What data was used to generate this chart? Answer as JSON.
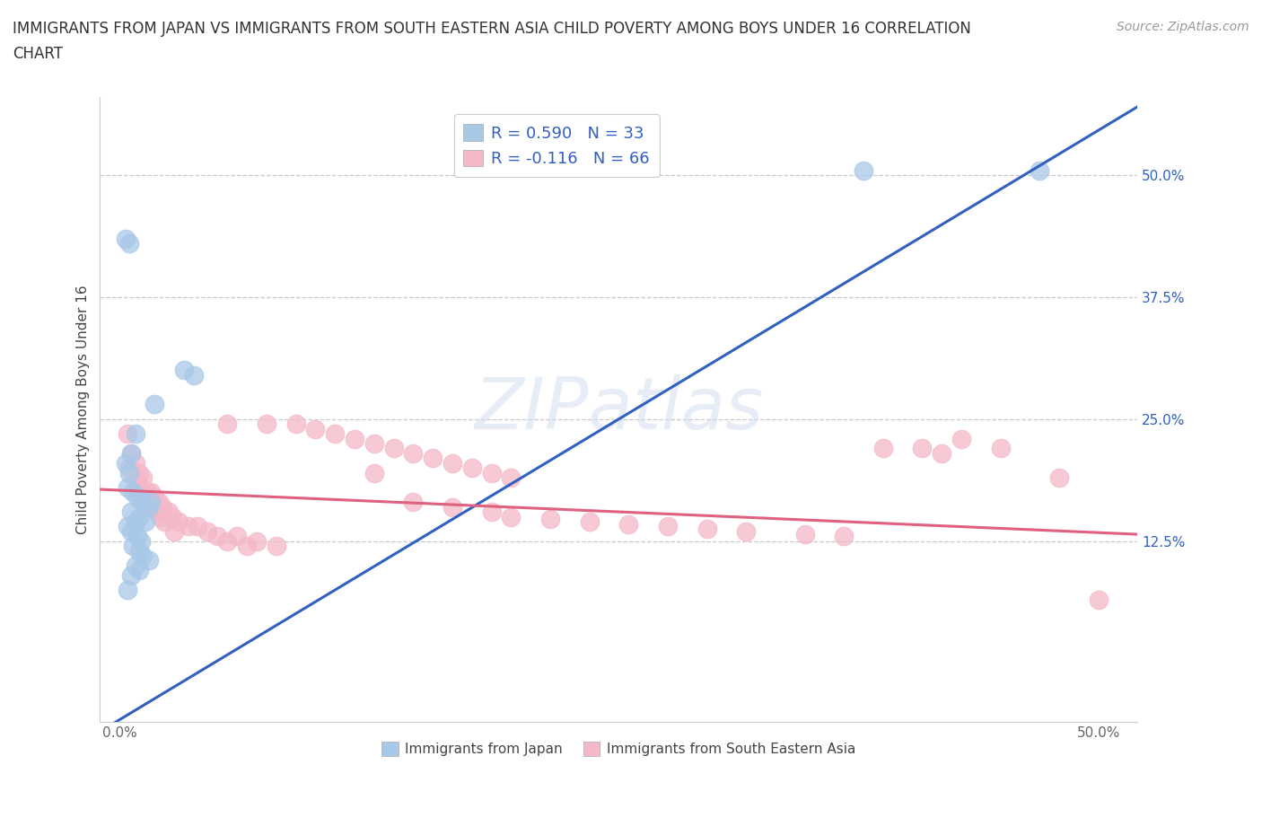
{
  "title_line1": "IMMIGRANTS FROM JAPAN VS IMMIGRANTS FROM SOUTH EASTERN ASIA CHILD POVERTY AMONG BOYS UNDER 16 CORRELATION",
  "title_line2": "CHART",
  "source_text": "Source: ZipAtlas.com",
  "ylabel": "Child Poverty Among Boys Under 16",
  "y_ticks": [
    0.125,
    0.25,
    0.375,
    0.5
  ],
  "y_tick_labels": [
    "12.5%",
    "25.0%",
    "37.5%",
    "50.0%"
  ],
  "xlim": [
    -0.01,
    0.52
  ],
  "ylim": [
    -0.06,
    0.58
  ],
  "japan_color": "#a8c8e8",
  "sea_color": "#f4b8c8",
  "japan_line_color": "#3060c0",
  "sea_line_color": "#e06080",
  "grid_color": "#c8c8d0",
  "background_color": "#ffffff",
  "japan_line_x0": -0.01,
  "japan_line_y0": -0.07,
  "japan_line_x1": 0.52,
  "japan_line_y1": 0.57,
  "sea_line_x0": -0.01,
  "sea_line_y0": 0.178,
  "sea_line_x1": 0.52,
  "sea_line_y1": 0.132,
  "japan_dots": [
    [
      0.003,
      0.435
    ],
    [
      0.005,
      0.43
    ],
    [
      0.033,
      0.3
    ],
    [
      0.038,
      0.295
    ],
    [
      0.018,
      0.265
    ],
    [
      0.008,
      0.235
    ],
    [
      0.006,
      0.215
    ],
    [
      0.003,
      0.205
    ],
    [
      0.005,
      0.195
    ],
    [
      0.004,
      0.18
    ],
    [
      0.007,
      0.175
    ],
    [
      0.009,
      0.17
    ],
    [
      0.012,
      0.165
    ],
    [
      0.015,
      0.16
    ],
    [
      0.006,
      0.155
    ],
    [
      0.01,
      0.15
    ],
    [
      0.008,
      0.145
    ],
    [
      0.013,
      0.145
    ],
    [
      0.004,
      0.14
    ],
    [
      0.006,
      0.135
    ],
    [
      0.009,
      0.13
    ],
    [
      0.011,
      0.125
    ],
    [
      0.007,
      0.12
    ],
    [
      0.01,
      0.115
    ],
    [
      0.012,
      0.11
    ],
    [
      0.015,
      0.105
    ],
    [
      0.008,
      0.1
    ],
    [
      0.01,
      0.095
    ],
    [
      0.006,
      0.09
    ],
    [
      0.004,
      0.075
    ],
    [
      0.016,
      0.165
    ],
    [
      0.38,
      0.505
    ],
    [
      0.47,
      0.505
    ]
  ],
  "sea_dots": [
    [
      0.004,
      0.235
    ],
    [
      0.006,
      0.215
    ],
    [
      0.008,
      0.205
    ],
    [
      0.005,
      0.2
    ],
    [
      0.01,
      0.195
    ],
    [
      0.012,
      0.19
    ],
    [
      0.009,
      0.185
    ],
    [
      0.011,
      0.18
    ],
    [
      0.014,
      0.175
    ],
    [
      0.016,
      0.175
    ],
    [
      0.013,
      0.17
    ],
    [
      0.018,
      0.17
    ],
    [
      0.015,
      0.165
    ],
    [
      0.02,
      0.165
    ],
    [
      0.017,
      0.16
    ],
    [
      0.022,
      0.16
    ],
    [
      0.019,
      0.155
    ],
    [
      0.025,
      0.155
    ],
    [
      0.021,
      0.15
    ],
    [
      0.027,
      0.15
    ],
    [
      0.023,
      0.145
    ],
    [
      0.03,
      0.145
    ],
    [
      0.035,
      0.14
    ],
    [
      0.04,
      0.14
    ],
    [
      0.028,
      0.135
    ],
    [
      0.045,
      0.135
    ],
    [
      0.05,
      0.13
    ],
    [
      0.06,
      0.13
    ],
    [
      0.055,
      0.125
    ],
    [
      0.07,
      0.125
    ],
    [
      0.065,
      0.12
    ],
    [
      0.08,
      0.12
    ],
    [
      0.055,
      0.245
    ],
    [
      0.075,
      0.245
    ],
    [
      0.09,
      0.245
    ],
    [
      0.1,
      0.24
    ],
    [
      0.11,
      0.235
    ],
    [
      0.12,
      0.23
    ],
    [
      0.13,
      0.225
    ],
    [
      0.14,
      0.22
    ],
    [
      0.15,
      0.215
    ],
    [
      0.16,
      0.21
    ],
    [
      0.17,
      0.205
    ],
    [
      0.18,
      0.2
    ],
    [
      0.19,
      0.195
    ],
    [
      0.2,
      0.19
    ],
    [
      0.13,
      0.195
    ],
    [
      0.15,
      0.165
    ],
    [
      0.17,
      0.16
    ],
    [
      0.19,
      0.155
    ],
    [
      0.2,
      0.15
    ],
    [
      0.22,
      0.148
    ],
    [
      0.24,
      0.145
    ],
    [
      0.26,
      0.142
    ],
    [
      0.28,
      0.14
    ],
    [
      0.3,
      0.138
    ],
    [
      0.32,
      0.135
    ],
    [
      0.35,
      0.132
    ],
    [
      0.37,
      0.13
    ],
    [
      0.39,
      0.22
    ],
    [
      0.41,
      0.22
    ],
    [
      0.42,
      0.215
    ],
    [
      0.43,
      0.23
    ],
    [
      0.45,
      0.22
    ],
    [
      0.48,
      0.19
    ],
    [
      0.5,
      0.065
    ]
  ],
  "legend_label_japan": "R = 0.590   N = 33",
  "legend_label_sea": "R = -0.116   N = 66",
  "bottom_label_japan": "Immigrants from Japan",
  "bottom_label_sea": "Immigrants from South Eastern Asia",
  "title_fontsize": 12,
  "label_fontsize": 11,
  "tick_fontsize": 11,
  "legend_fontsize": 13
}
